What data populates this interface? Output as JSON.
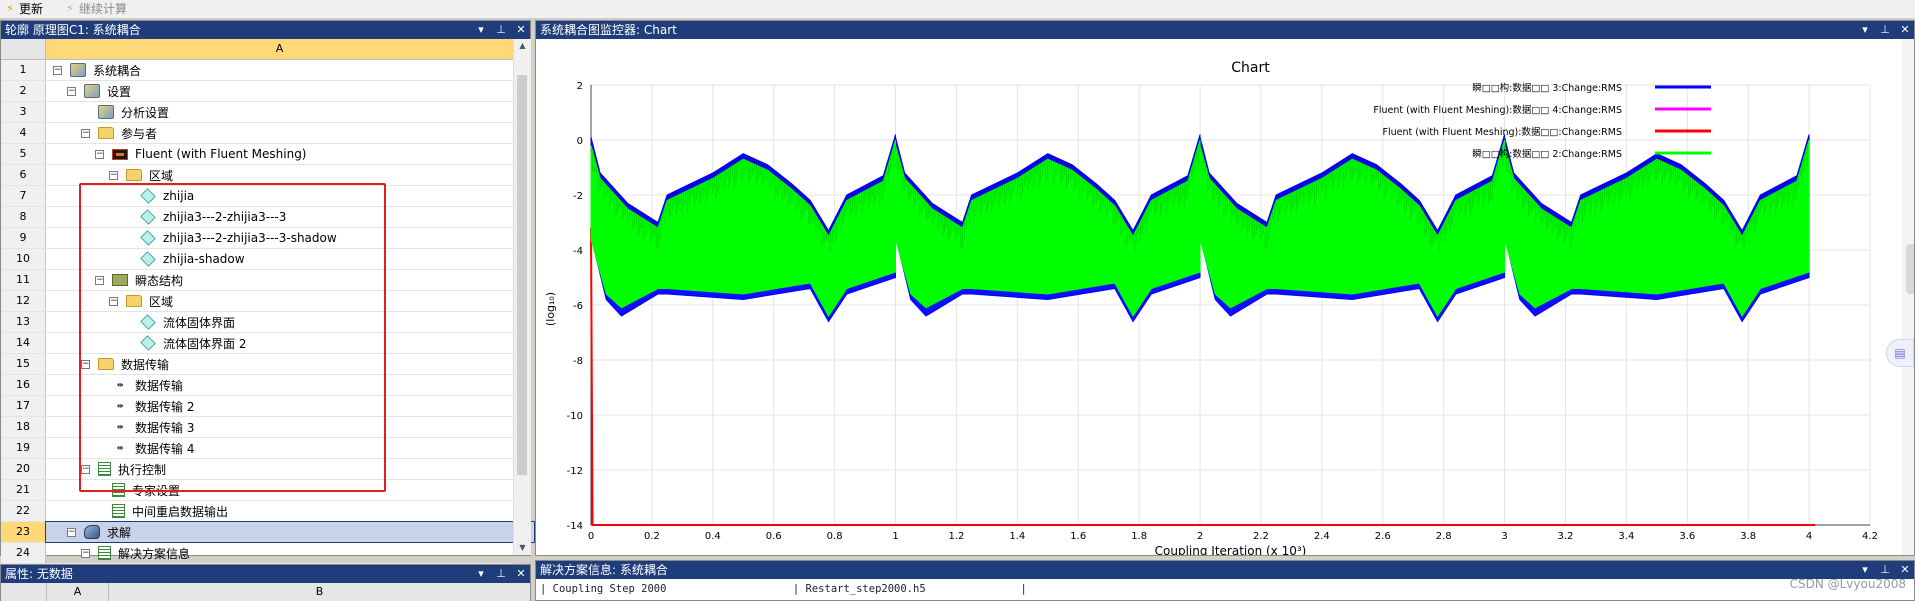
{
  "toolbar": {
    "update_label": "更新",
    "continue_label": "继续计算"
  },
  "tree_panel": {
    "title": "轮廓 原理图C1: 系统耦合",
    "column_a": "A",
    "rows": [
      {
        "num": "1",
        "label": "系统耦合",
        "indent": 0,
        "toggle": "⊟",
        "icon": "gear"
      },
      {
        "num": "2",
        "label": "设置",
        "indent": 1,
        "toggle": "⊟",
        "icon": "gear"
      },
      {
        "num": "3",
        "label": "分析设置",
        "indent": 2,
        "toggle": "",
        "icon": "gear"
      },
      {
        "num": "4",
        "label": "参与者",
        "indent": 2,
        "toggle": "⊟",
        "icon": "folder"
      },
      {
        "num": "5",
        "label": "Fluent (with Fluent Meshing)",
        "indent": 3,
        "toggle": "⊟",
        "icon": "flu"
      },
      {
        "num": "6",
        "label": "区域",
        "indent": 4,
        "toggle": "⊟",
        "icon": "folder"
      },
      {
        "num": "7",
        "label": "zhijia",
        "indent": 5,
        "toggle": "",
        "icon": "cube"
      },
      {
        "num": "8",
        "label": "zhijia3---2-zhijia3---3",
        "indent": 5,
        "toggle": "",
        "icon": "cube"
      },
      {
        "num": "9",
        "label": "zhijia3---2-zhijia3---3-shadow",
        "indent": 5,
        "toggle": "",
        "icon": "cube"
      },
      {
        "num": "10",
        "label": "zhijia-shadow",
        "indent": 5,
        "toggle": "",
        "icon": "cube"
      },
      {
        "num": "11",
        "label": "瞬态结构",
        "indent": 3,
        "toggle": "⊟",
        "icon": "mech"
      },
      {
        "num": "12",
        "label": "区域",
        "indent": 4,
        "toggle": "⊟",
        "icon": "folder"
      },
      {
        "num": "13",
        "label": "流体固体界面",
        "indent": 5,
        "toggle": "",
        "icon": "cube"
      },
      {
        "num": "14",
        "label": "流体固体界面 2",
        "indent": 5,
        "toggle": "",
        "icon": "cube"
      },
      {
        "num": "15",
        "label": "数据传输",
        "indent": 2,
        "toggle": "⊟",
        "icon": "folder"
      },
      {
        "num": "16",
        "label": "数据传输",
        "indent": 3,
        "toggle": "",
        "icon": "xfer"
      },
      {
        "num": "17",
        "label": "数据传输 2",
        "indent": 3,
        "toggle": "",
        "icon": "xfer"
      },
      {
        "num": "18",
        "label": "数据传输 3",
        "indent": 3,
        "toggle": "",
        "icon": "xfer"
      },
      {
        "num": "19",
        "label": "数据传输 4",
        "indent": 3,
        "toggle": "",
        "icon": "xfer"
      },
      {
        "num": "20",
        "label": "执行控制",
        "indent": 2,
        "toggle": "⊟",
        "icon": "list"
      },
      {
        "num": "21",
        "label": "专家设置",
        "indent": 3,
        "toggle": "",
        "icon": "list"
      },
      {
        "num": "22",
        "label": "中间重启数据输出",
        "indent": 3,
        "toggle": "",
        "icon": "list"
      },
      {
        "num": "23",
        "label": "求解",
        "indent": 1,
        "toggle": "⊟",
        "icon": "solve",
        "selected": true
      },
      {
        "num": "24",
        "label": "解决方案信息",
        "indent": 2,
        "toggle": "⊟",
        "icon": "list"
      }
    ]
  },
  "props_panel": {
    "title": "属性: 无数据",
    "col_a": "A",
    "col_b": "B"
  },
  "chart_panel": {
    "title": "系统耦合图监控器: Chart"
  },
  "chart_data": {
    "type": "line",
    "title": "Chart",
    "xlabel": "Coupling Iteration (x 10³)",
    "ylabel": "(log₁₀)",
    "xlim": [
      0,
      4.2
    ],
    "ylim": [
      -14,
      2
    ],
    "xticks": [
      "0",
      "0.2",
      "0.4",
      "0.6",
      "0.8",
      "1",
      "1.2",
      "1.4",
      "1.6",
      "1.8",
      "2",
      "2.2",
      "2.4",
      "2.6",
      "2.8",
      "3",
      "3.2",
      "3.4",
      "3.6",
      "3.8",
      "4",
      "4.2"
    ],
    "yticks": [
      "2",
      "0",
      "-2",
      "-4",
      "-6",
      "-8",
      "-10",
      "-12",
      "-14"
    ],
    "legend_position": "top-right",
    "cycle_length": 0.5,
    "cycle_starts": [
      0,
      1,
      2,
      3
    ],
    "series": [
      {
        "name": "瞬□□构:数据□□ 3:Change:RMS",
        "color": "#0000ff",
        "envelope": [
          [
            0,
            0.1
          ],
          [
            0.03,
            -1.2
          ],
          [
            0.12,
            -2.3
          ],
          [
            0.22,
            -3.0
          ],
          [
            0.25,
            -2.0
          ],
          [
            0.4,
            -1.2
          ],
          [
            0.5,
            -0.5
          ],
          [
            0.58,
            -0.9
          ],
          [
            0.66,
            -1.6
          ],
          [
            0.72,
            -2.2
          ],
          [
            0.78,
            -3.3
          ],
          [
            0.84,
            -2.0
          ],
          [
            0.96,
            -1.3
          ],
          [
            1.0,
            0.2
          ]
        ],
        "lower": [
          [
            0,
            -3.5
          ],
          [
            0.05,
            -5.8
          ],
          [
            0.1,
            -6.4
          ],
          [
            0.22,
            -5.6
          ],
          [
            0.25,
            -5.6
          ],
          [
            0.5,
            -5.8
          ],
          [
            0.72,
            -5.4
          ],
          [
            0.78,
            -6.6
          ],
          [
            0.84,
            -5.6
          ],
          [
            1.0,
            -5.0
          ]
        ]
      },
      {
        "name": "Fluent (with Fluent Meshing):数据□□ 4:Change:RMS",
        "color": "#ff00ff",
        "envelope": [],
        "lower": []
      },
      {
        "name": "Fluent (with Fluent Meshing):数据□□:Change:RMS",
        "color": "#ff0000",
        "envelope": [
          [
            0,
            -3.2
          ],
          [
            0.005,
            -14
          ],
          [
            4.02,
            -14
          ]
        ],
        "lower": []
      },
      {
        "name": "瞬□□构:数据□□ 2:Change:RMS",
        "color": "#00ff00",
        "envelope": [
          [
            0,
            -0.2
          ],
          [
            0.03,
            -1.4
          ],
          [
            0.12,
            -2.5
          ],
          [
            0.22,
            -3.2
          ],
          [
            0.25,
            -2.2
          ],
          [
            0.4,
            -1.4
          ],
          [
            0.5,
            -0.7
          ],
          [
            0.58,
            -1.1
          ],
          [
            0.66,
            -1.8
          ],
          [
            0.72,
            -2.4
          ],
          [
            0.78,
            -3.5
          ],
          [
            0.84,
            -2.2
          ],
          [
            0.96,
            -1.5
          ],
          [
            1.0,
            0.0
          ]
        ],
        "lower": [
          [
            0,
            -3.6
          ],
          [
            0.05,
            -5.6
          ],
          [
            0.1,
            -6.1
          ],
          [
            0.22,
            -5.4
          ],
          [
            0.25,
            -5.4
          ],
          [
            0.5,
            -5.6
          ],
          [
            0.72,
            -5.2
          ],
          [
            0.78,
            -6.4
          ],
          [
            0.84,
            -5.4
          ],
          [
            1.0,
            -4.8
          ]
        ]
      }
    ]
  },
  "msg_panel": {
    "title": "解决方案信息: 系统耦合",
    "line_a": "Coupling Step 2000",
    "line_b": "Restart_step2000.h5"
  },
  "watermark": "CSDN @Lvyou2008",
  "icons": {
    "pin": "pin-icon",
    "close": "close-icon",
    "dropdown": "dropdown-icon"
  }
}
